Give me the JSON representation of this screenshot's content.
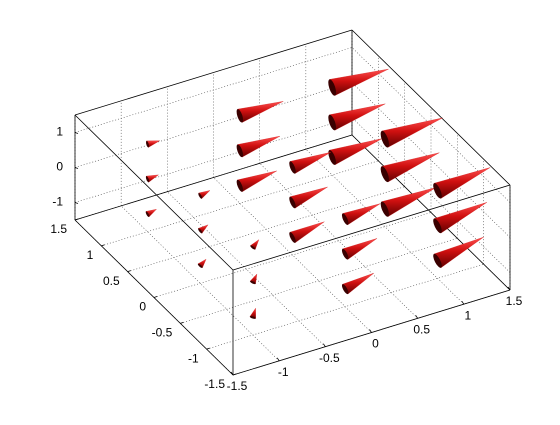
{
  "chart_data": {
    "type": "cone",
    "xlim": [
      -1.5,
      1.5
    ],
    "ylim": [
      -1.5,
      1.5
    ],
    "zlim": [
      -1.5,
      1.5
    ],
    "xticks": [
      -1.5,
      -1,
      -0.5,
      0,
      0.5,
      1,
      1.5
    ],
    "yticks": [
      -1.5,
      -1,
      -0.5,
      0,
      0.5,
      1,
      1.5
    ],
    "zticks": [
      -1,
      0,
      1
    ],
    "grid": true,
    "color": "#cc1010",
    "cones": {
      "x": [
        1,
        1,
        1,
        1,
        1,
        1,
        0,
        0,
        0,
        1,
        1,
        1,
        0,
        0,
        0,
        -1,
        -1,
        -1,
        0,
        0,
        0,
        -1,
        -1,
        -1,
        -1,
        -1,
        -1
      ],
      "y": [
        1,
        1,
        1,
        0,
        0,
        0,
        1,
        1,
        1,
        -1,
        -1,
        -1,
        0,
        0,
        0,
        1,
        1,
        1,
        -1,
        -1,
        -1,
        0,
        0,
        0,
        -1,
        -1,
        -1
      ],
      "z": [
        -1,
        0,
        1,
        -1,
        0,
        1,
        -1,
        0,
        1,
        -1,
        0,
        1,
        -1,
        0,
        1,
        -1,
        0,
        1,
        -1,
        0,
        1,
        -1,
        0,
        1,
        -1,
        0,
        1
      ],
      "u": [
        0.8,
        0.85,
        0.9,
        0.85,
        0.9,
        0.95,
        0.6,
        0.65,
        0.7,
        0.8,
        0.85,
        0.9,
        0.55,
        0.6,
        0.65,
        0.15,
        0.18,
        0.2,
        0.5,
        0.55,
        0.6,
        0.12,
        0.15,
        0.18,
        0.1,
        0.12,
        0.15
      ],
      "v": [
        0.05,
        0.05,
        0.05,
        0.1,
        0.1,
        0.1,
        0.05,
        0.05,
        0.05,
        0.15,
        0.15,
        0.15,
        0.1,
        0.1,
        0.1,
        0.02,
        0.02,
        0.02,
        0.1,
        0.1,
        0.1,
        0.05,
        0.05,
        0.05,
        0.1,
        0.1,
        0.1
      ],
      "w": [
        0.05,
        0,
        -0.05,
        0.05,
        0,
        -0.05,
        0.05,
        0,
        -0.05,
        0.1,
        0.05,
        0,
        0.05,
        0,
        -0.05,
        0.05,
        0,
        -0.05,
        0.1,
        0.05,
        0,
        0.1,
        0.05,
        0,
        0.15,
        0.1,
        0.05
      ]
    }
  }
}
